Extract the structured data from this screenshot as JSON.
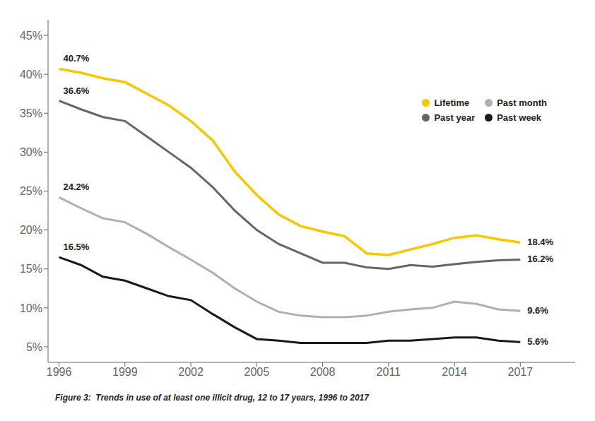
{
  "chart_data": {
    "type": "line",
    "title": "Figure 3:  Trends in use of at least one illicit drug, 12 to 17 years, 1996 to 2017",
    "x": [
      1996,
      1997,
      1998,
      1999,
      2000,
      2001,
      2002,
      2003,
      2004,
      2005,
      2006,
      2007,
      2008,
      2009,
      2010,
      2011,
      2012,
      2013,
      2014,
      2015,
      2016,
      2017
    ],
    "series": [
      {
        "name": "Lifetime",
        "color": "#F5C800",
        "values": [
          40.7,
          40.2,
          39.5,
          39.0,
          37.5,
          36.0,
          34.0,
          31.5,
          27.5,
          24.5,
          22.0,
          20.5,
          19.8,
          19.2,
          17.0,
          16.8,
          17.5,
          18.2,
          19.0,
          19.3,
          18.8,
          18.4
        ]
      },
      {
        "name": "Past month",
        "color": "#B0B0B0",
        "values": [
          24.2,
          22.8,
          21.5,
          21.0,
          19.5,
          17.8,
          16.2,
          14.5,
          12.5,
          10.8,
          9.5,
          9.0,
          8.8,
          8.8,
          9.0,
          9.5,
          9.8,
          10.0,
          10.8,
          10.5,
          9.8,
          9.6
        ]
      },
      {
        "name": "Past year",
        "color": "#666666",
        "values": [
          36.6,
          35.5,
          34.5,
          34.0,
          32.0,
          30.0,
          28.0,
          25.5,
          22.5,
          20.0,
          18.2,
          17.0,
          15.8,
          15.8,
          15.2,
          15.0,
          15.5,
          15.3,
          15.6,
          15.9,
          16.1,
          16.2
        ]
      },
      {
        "name": "Past week",
        "color": "#1A1A1A",
        "values": [
          16.5,
          15.5,
          14.0,
          13.5,
          12.5,
          11.5,
          11.0,
          9.2,
          7.5,
          6.0,
          5.8,
          5.5,
          5.5,
          5.5,
          5.5,
          5.8,
          5.8,
          6.0,
          6.2,
          6.2,
          5.8,
          5.6
        ]
      }
    ],
    "xlim": [
      1995.5,
      2019.5
    ],
    "xticks": [
      1996,
      1999,
      2002,
      2005,
      2008,
      2011,
      2014,
      2017
    ],
    "ylim": [
      3,
      47
    ],
    "yticks": [
      {
        "value": 5,
        "label": "5%"
      },
      {
        "value": 10,
        "label": "10%"
      },
      {
        "value": 15,
        "label": "15%"
      },
      {
        "value": 20,
        "label": "20%"
      },
      {
        "value": 25,
        "label": "25%"
      },
      {
        "value": 30,
        "label": "30%"
      },
      {
        "value": 35,
        "label": "35%"
      },
      {
        "value": 40,
        "label": "40%"
      },
      {
        "value": 45,
        "label": "45%"
      }
    ],
    "annotations": [
      {
        "text": "40.7%",
        "x": 1996,
        "y": 40.7
      },
      {
        "text": "36.6%",
        "x": 1996,
        "y": 36.6
      },
      {
        "text": "24.2%",
        "x": 1996,
        "y": 24.2
      },
      {
        "text": "16.5%",
        "x": 1996,
        "y": 16.5
      },
      {
        "text": "18.4%",
        "x": 2017,
        "y": 18.4
      },
      {
        "text": "16.2%",
        "x": 2017,
        "y": 16.2
      },
      {
        "text": "9.6%",
        "x": 2017,
        "y": 9.6
      },
      {
        "text": "5.6%",
        "x": 2017,
        "y": 5.6
      }
    ],
    "grid": false,
    "legend": "upper right"
  }
}
